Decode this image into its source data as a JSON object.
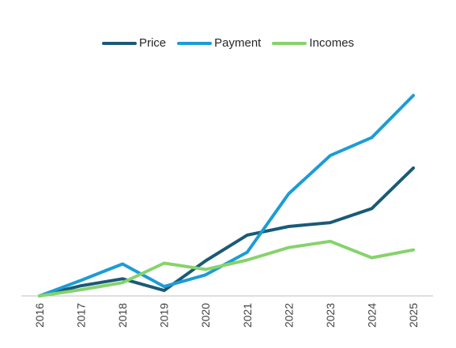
{
  "chart_data": {
    "type": "line",
    "title": "",
    "xlabel": "",
    "ylabel": "",
    "categories": [
      "2016",
      "2017",
      "2018",
      "2019",
      "2020",
      "2021",
      "2022",
      "2023",
      "2024",
      "2025"
    ],
    "ylim": [
      0,
      260
    ],
    "grid": false,
    "y_axis_visible": false,
    "legend_position": "top-center",
    "series": [
      {
        "name": "Price",
        "color": "#1a5a77",
        "values": [
          0,
          13,
          22,
          7,
          45,
          78,
          89,
          94,
          112,
          164
        ]
      },
      {
        "name": "Payment",
        "color": "#1c9cd6",
        "values": [
          0,
          20,
          41,
          12,
          27,
          56,
          131,
          180,
          203,
          257
        ]
      },
      {
        "name": "Incomes",
        "color": "#86d36b",
        "values": [
          0,
          8,
          17,
          42,
          34,
          46,
          62,
          70,
          49,
          59
        ]
      }
    ]
  }
}
